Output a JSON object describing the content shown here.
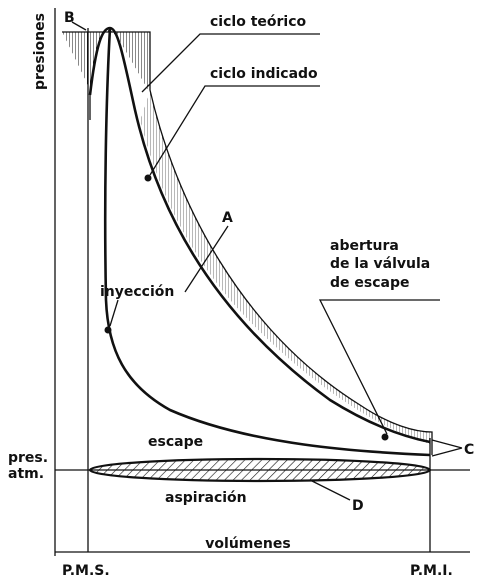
{
  "axes": {
    "y_label": "presiones",
    "x_label": "volúmenes",
    "left_mark": "P.M.S.",
    "right_mark": "P.M.I.",
    "atm_label": [
      "pres.",
      "atm."
    ]
  },
  "points": {
    "b": "B",
    "a": "A",
    "c": "C",
    "d": "D"
  },
  "labels": {
    "theoretical_cycle": "ciclo teórico",
    "indicated_cycle": "ciclo indicado",
    "injection": "inyección",
    "exhaust_valve": [
      "abertura",
      "de la válvula",
      "de escape"
    ],
    "exhaust": "escape",
    "intake": "aspiración"
  }
}
